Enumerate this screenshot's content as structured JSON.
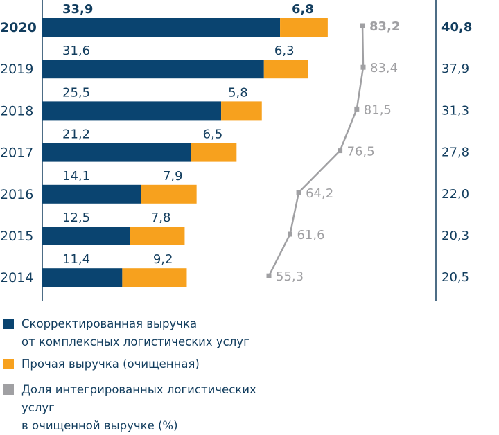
{
  "chart_data": {
    "type": "bar",
    "stacked": true,
    "orientation": "horizontal",
    "categories": [
      "2020",
      "2019",
      "2018",
      "2017",
      "2016",
      "2015",
      "2014"
    ],
    "series": [
      {
        "name": "Скорректированная выручка от комплексных логистических услуг",
        "color": "#0a4470",
        "values": [
          33.9,
          31.6,
          25.5,
          21.2,
          14.1,
          12.5,
          11.4
        ],
        "labels": [
          "33,9",
          "31,6",
          "25,5",
          "21,2",
          "14,1",
          "12,5",
          "11,4"
        ]
      },
      {
        "name": "Прочая выручка (очищенная)",
        "color": "#f7a11e",
        "values": [
          6.8,
          6.3,
          5.8,
          6.5,
          7.9,
          7.8,
          9.2
        ],
        "labels": [
          "6,8",
          "6,3",
          "5,8",
          "6,5",
          "7,9",
          "7,8",
          "9,2"
        ]
      },
      {
        "name": "Доля интегрированных логистических услуг в очищенной выручке (%)",
        "type": "line",
        "color": "#a0a0a3",
        "values": [
          83.2,
          83.4,
          81.5,
          76.5,
          64.2,
          61.6,
          55.3
        ],
        "labels": [
          "83,2",
          "83,4",
          "81,5",
          "76,5",
          "64,2",
          "61,6",
          "55,3"
        ]
      }
    ],
    "totals": [
      40.8,
      37.9,
      31.3,
      27.8,
      22.0,
      20.3,
      20.5
    ],
    "total_labels": [
      "40,8",
      "37,9",
      "31,3",
      "27,8",
      "22,0",
      "20,3",
      "20,5"
    ],
    "highlight_category": "2020",
    "legend_position": "bottom-left",
    "grid": false
  },
  "legend": [
    {
      "line1": "Скорректированная выручка",
      "line2": "от комплексных логистических услуг"
    },
    {
      "line1": "Прочая выручка (очищенная)",
      "line2": ""
    },
    {
      "line1": "Доля интегрированных логистических услуг",
      "line2": "в очищенной выручке (%)"
    }
  ]
}
